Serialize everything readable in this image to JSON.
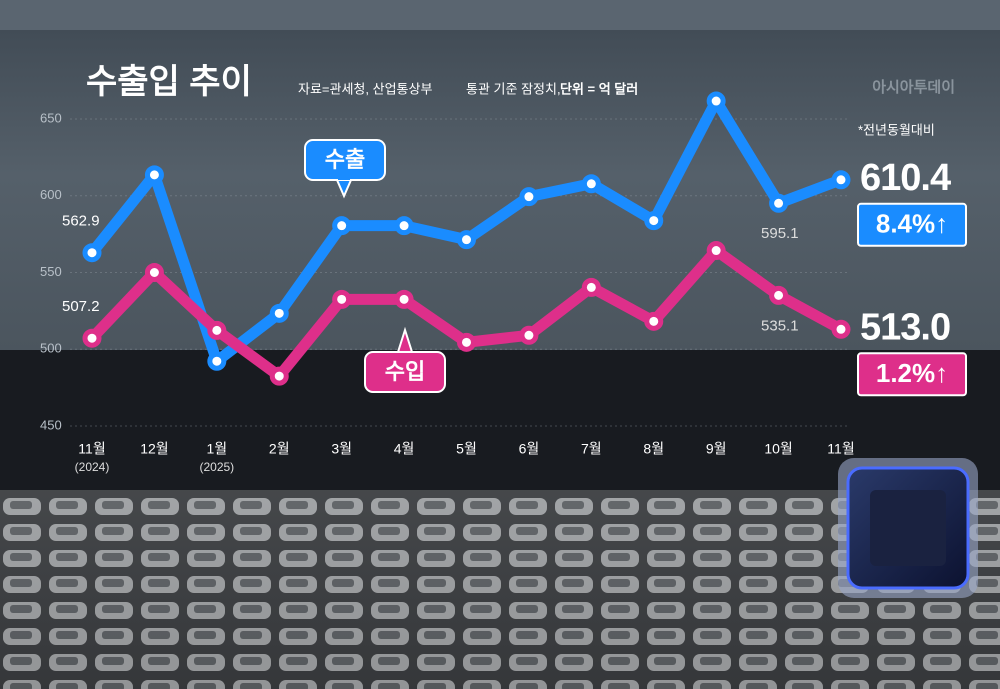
{
  "chart_data": {
    "type": "line",
    "title": "수출입 추이",
    "source": "자료=관세청, 산업통상부",
    "note": "통관 기준 잠정치,",
    "unit": "단위 = 억 달러",
    "logo": "아시아투데이",
    "comparison_note": "*전년동월대비",
    "categories": [
      "11월",
      "12월",
      "1월",
      "2월",
      "3월",
      "4월",
      "5월",
      "6월",
      "7월",
      "8월",
      "9월",
      "10월",
      "11월"
    ],
    "category_notes": [
      "(2024)",
      null,
      "(2025)",
      null,
      null,
      null,
      null,
      null,
      null,
      null,
      null,
      null,
      null
    ],
    "series": [
      {
        "name": "수출",
        "color": "#1a8cff",
        "values": [
          562.9,
          613.6,
          492.2,
          523.4,
          580.5,
          580.5,
          571.4,
          599.4,
          607.8,
          583.8,
          661.7,
          595.1,
          610.4
        ],
        "value_labels": [
          "562.9",
          null,
          null,
          null,
          null,
          null,
          null,
          null,
          null,
          null,
          null,
          "595.1",
          "610.4"
        ],
        "change": "8.4%↑"
      },
      {
        "name": "수입",
        "color": "#de2f8a",
        "values": [
          507.2,
          550.0,
          512.3,
          482.5,
          532.5,
          532.5,
          504.5,
          509.1,
          540.3,
          518.2,
          564.3,
          535.1,
          513.0
        ],
        "value_labels": [
          "507.2",
          null,
          null,
          null,
          null,
          null,
          null,
          null,
          null,
          null,
          null,
          "535.1",
          "513.0"
        ],
        "change": "1.2%↑"
      }
    ],
    "ylim": [
      450,
      650
    ],
    "yticks": [
      450,
      500,
      550,
      600,
      650
    ],
    "grid": true
  }
}
